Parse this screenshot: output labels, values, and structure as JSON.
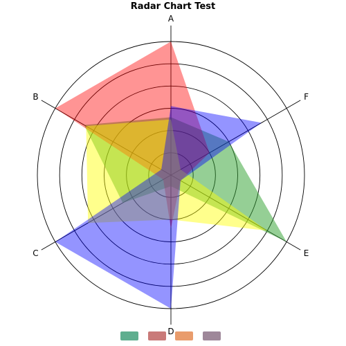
{
  "chart_data": {
    "type": "radar",
    "title": "Radar Chart Test",
    "axes": [
      "A",
      "F",
      "E",
      "D",
      "C",
      "B"
    ],
    "rmax": 6,
    "rings": [
      1,
      2,
      3,
      4,
      5,
      6
    ],
    "series": [
      {
        "color": "#2ca02c",
        "opacity": 0.5,
        "values": [
          2.6,
          3.0,
          6.0,
          0.5,
          2.5,
          4.5
        ]
      },
      {
        "color": "#ff0000",
        "opacity": 0.42,
        "values": [
          6.0,
          2.0,
          0.5,
          2.4,
          0.4,
          6.0
        ]
      },
      {
        "color": "#ffff00",
        "opacity": 0.45,
        "values": [
          2.5,
          0.5,
          5.0,
          2.0,
          4.3,
          4.4
        ]
      },
      {
        "color": "#0000ff",
        "opacity": 0.42,
        "values": [
          3.1,
          4.7,
          0.5,
          6.0,
          6.0,
          0.5
        ]
      }
    ],
    "legend": {
      "placement": "bottom",
      "colors": [
        "#5fae8f",
        "#c97a79",
        "#e99c6c",
        "#9e8799"
      ]
    }
  }
}
